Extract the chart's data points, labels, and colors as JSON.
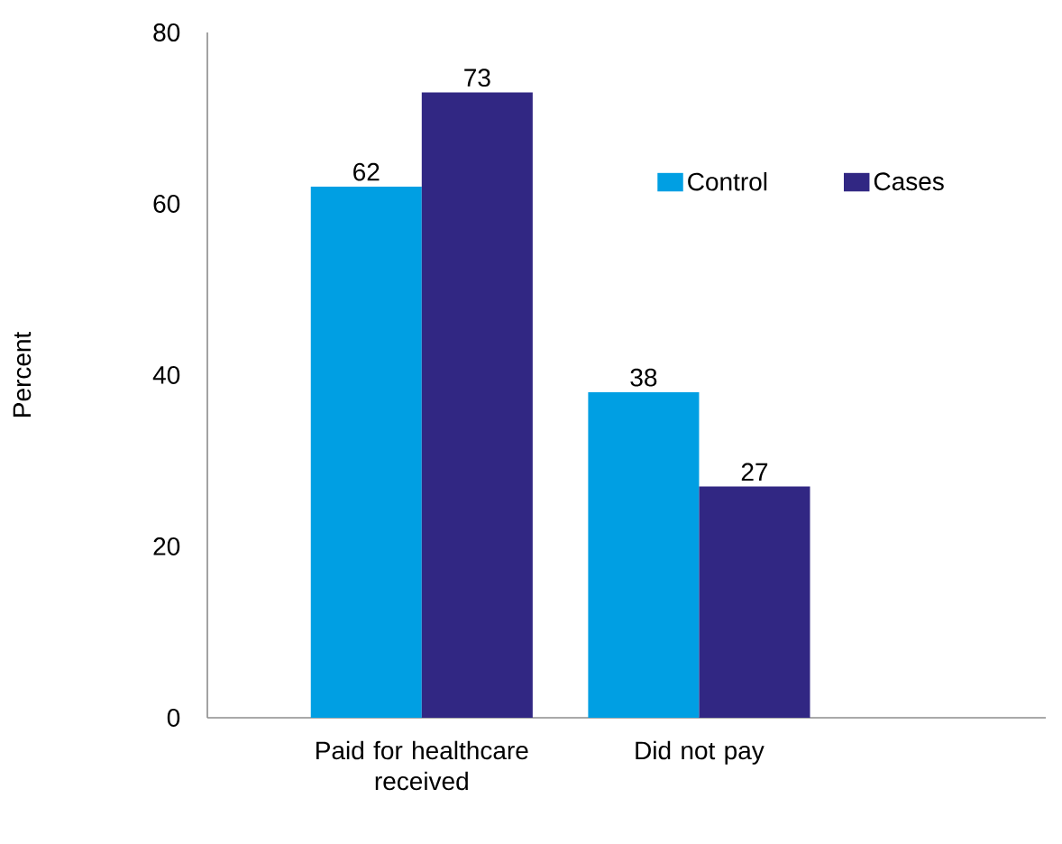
{
  "chart_data": {
    "type": "bar",
    "ylabel": "Percent",
    "categories": [
      "Paid for healthcare received",
      "Did not pay"
    ],
    "series": [
      {
        "name": "Control",
        "color": "#009fe3",
        "values": [
          62,
          38
        ]
      },
      {
        "name": "Cases",
        "color": "#312783",
        "values": [
          73,
          27
        ]
      }
    ],
    "ylim": [
      0,
      80
    ],
    "yticks": [
      0,
      20,
      40,
      60,
      80
    ],
    "data_labels": true,
    "legend": "top right",
    "grid": false
  }
}
